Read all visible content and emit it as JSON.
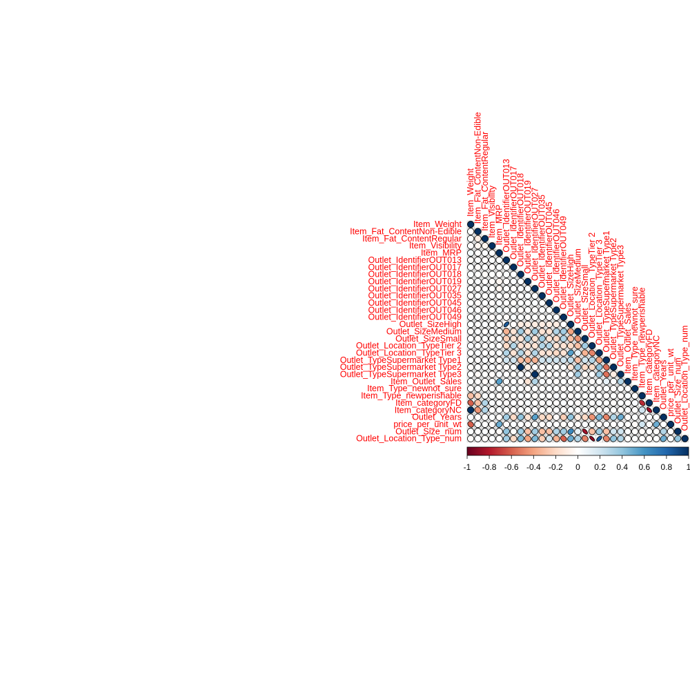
{
  "chart_data": {
    "type": "heatmap",
    "layout": "lower-triangle",
    "shape": "ellipse",
    "variables": [
      "Item_Weight",
      "Item_Fat_ContentNon-Edible",
      "Item_Fat_ContentRegular",
      "Item_Visibility",
      "Item_MRP",
      "Outlet_IdentifierOUT013",
      "Outlet_IdentifierOUT017",
      "Outlet_IdentifierOUT018",
      "Outlet_IdentifierOUT019",
      "Outlet_IdentifierOUT027",
      "Outlet_IdentifierOUT035",
      "Outlet_IdentifierOUT045",
      "Outlet_IdentifierOUT046",
      "Outlet_IdentifierOUT049",
      "Outlet_SizeHigh",
      "Outlet_SizeMedium",
      "Outlet_SizeSmall",
      "Outlet_Location_TypeTier 2",
      "Outlet_Location_TypeTier 3",
      "Outlet_TypeSupermarket Type1",
      "Outlet_TypeSupermarket Type2",
      "Outlet_TypeSupermarket Type3",
      "Item_Outlet_Sales",
      "Item_Type_newnot_sure",
      "Item_Type_newperishable",
      "Item_categoryFD",
      "Item_categoryNC",
      "Outlet_Years",
      "price_per_unit_wt",
      "Outlet_Size_num",
      "Outlet_Location_Type_num"
    ],
    "correlations": [
      [
        1,
        4,
        0.3
      ],
      [
        2,
        1,
        -0.1
      ],
      [
        3,
        1,
        -0.05
      ],
      [
        3,
        2,
        -0.05
      ],
      [
        4,
        0,
        0.05
      ],
      [
        8,
        4,
        -0.05
      ],
      [
        9,
        4,
        -0.05
      ],
      [
        12,
        4,
        0.05
      ],
      [
        14,
        5,
        0.85
      ],
      [
        14,
        7,
        -0.1
      ],
      [
        14,
        8,
        -0.1
      ],
      [
        14,
        9,
        -0.1
      ],
      [
        14,
        10,
        -0.1
      ],
      [
        14,
        11,
        -0.1
      ],
      [
        14,
        12,
        -0.1
      ],
      [
        15,
        5,
        -0.35
      ],
      [
        15,
        6,
        -0.15
      ],
      [
        15,
        7,
        0.35
      ],
      [
        15,
        8,
        -0.15
      ],
      [
        15,
        9,
        0.35
      ],
      [
        15,
        10,
        -0.15
      ],
      [
        15,
        11,
        -0.15
      ],
      [
        15,
        12,
        0.3
      ],
      [
        15,
        13,
        0.35
      ],
      [
        15,
        14,
        -0.4
      ],
      [
        16,
        5,
        -0.25
      ],
      [
        16,
        6,
        -0.15
      ],
      [
        16,
        7,
        -0.15
      ],
      [
        16,
        8,
        0.35
      ],
      [
        16,
        9,
        -0.15
      ],
      [
        16,
        10,
        0.35
      ],
      [
        16,
        11,
        -0.15
      ],
      [
        16,
        12,
        -0.2
      ],
      [
        16,
        13,
        0.3
      ],
      [
        16,
        14,
        -0.3
      ],
      [
        16,
        15,
        -0.45
      ],
      [
        17,
        5,
        -0.2
      ],
      [
        17,
        6,
        0.3
      ],
      [
        17,
        7,
        -0.15
      ],
      [
        17,
        8,
        -0.15
      ],
      [
        17,
        9,
        -0.15
      ],
      [
        17,
        10,
        0.3
      ],
      [
        17,
        11,
        0.3
      ],
      [
        17,
        12,
        -0.15
      ],
      [
        17,
        13,
        -0.15
      ],
      [
        17,
        14,
        -0.2
      ],
      [
        17,
        15,
        -0.3
      ],
      [
        17,
        16,
        0.35
      ],
      [
        18,
        5,
        0.3
      ],
      [
        18,
        6,
        -0.15
      ],
      [
        18,
        7,
        0.3
      ],
      [
        18,
        8,
        -0.15
      ],
      [
        18,
        9,
        0.3
      ],
      [
        18,
        10,
        -0.15
      ],
      [
        18,
        11,
        -0.15
      ],
      [
        18,
        12,
        -0.2
      ],
      [
        18,
        13,
        -0.15
      ],
      [
        18,
        14,
        0.55
      ],
      [
        18,
        15,
        0.1
      ],
      [
        18,
        16,
        -0.35
      ],
      [
        18,
        17,
        -0.5
      ],
      [
        19,
        5,
        0.2
      ],
      [
        19,
        6,
        0.2
      ],
      [
        19,
        7,
        -0.3
      ],
      [
        19,
        8,
        -0.35
      ],
      [
        19,
        9,
        -0.35
      ],
      [
        19,
        10,
        0.2
      ],
      [
        19,
        11,
        0.2
      ],
      [
        19,
        12,
        0.2
      ],
      [
        19,
        13,
        0.2
      ],
      [
        19,
        14,
        0.25
      ],
      [
        19,
        15,
        -0.3
      ],
      [
        19,
        16,
        0.2
      ],
      [
        19,
        17,
        0.3
      ],
      [
        19,
        18,
        -0.4
      ],
      [
        20,
        7,
        1.0
      ],
      [
        20,
        8,
        -0.1
      ],
      [
        20,
        14,
        -0.15
      ],
      [
        20,
        15,
        0.35
      ],
      [
        20,
        16,
        -0.2
      ],
      [
        20,
        17,
        -0.2
      ],
      [
        20,
        18,
        0.4
      ],
      [
        20,
        19,
        -0.55
      ],
      [
        21,
        9,
        1.0
      ],
      [
        21,
        15,
        0.35
      ],
      [
        21,
        18,
        0.35
      ],
      [
        21,
        19,
        -0.55
      ],
      [
        21,
        20,
        -0.1
      ],
      [
        22,
        4,
        0.55
      ],
      [
        22,
        8,
        -0.15
      ],
      [
        22,
        9,
        0.3
      ],
      [
        22,
        19,
        0.1
      ],
      [
        22,
        21,
        0.3
      ],
      [
        24,
        0,
        -0.3
      ],
      [
        24,
        1,
        -0.2
      ],
      [
        25,
        0,
        -0.6
      ],
      [
        25,
        1,
        -0.3
      ],
      [
        25,
        2,
        0.3
      ],
      [
        25,
        24,
        -0.75
      ],
      [
        26,
        0,
        1.0
      ],
      [
        26,
        1,
        -0.45
      ],
      [
        26,
        2,
        0.3
      ],
      [
        26,
        24,
        0.2
      ],
      [
        26,
        25,
        -0.85
      ],
      [
        27,
        5,
        0.35
      ],
      [
        27,
        6,
        -0.2
      ],
      [
        27,
        7,
        0.4
      ],
      [
        27,
        8,
        -0.15
      ],
      [
        27,
        9,
        0.55
      ],
      [
        27,
        10,
        -0.2
      ],
      [
        27,
        11,
        -0.2
      ],
      [
        27,
        13,
        -0.25
      ],
      [
        27,
        14,
        0.4
      ],
      [
        27,
        15,
        -0.1
      ],
      [
        27,
        16,
        -0.2
      ],
      [
        27,
        17,
        -0.45
      ],
      [
        27,
        18,
        0.45
      ],
      [
        27,
        19,
        -0.5
      ],
      [
        27,
        20,
        0.3
      ],
      [
        27,
        21,
        0.5
      ],
      [
        28,
        0,
        -0.6
      ],
      [
        28,
        4,
        0.5
      ],
      [
        28,
        24,
        0.2
      ],
      [
        28,
        26,
        0.5
      ],
      [
        29,
        5,
        0.4
      ],
      [
        29,
        7,
        0.35
      ],
      [
        29,
        8,
        -0.3
      ],
      [
        29,
        9,
        0.35
      ],
      [
        29,
        10,
        -0.3
      ],
      [
        29,
        11,
        -0.3
      ],
      [
        29,
        12,
        0.3
      ],
      [
        29,
        13,
        0.35
      ],
      [
        29,
        14,
        0.65
      ],
      [
        29,
        15,
        0.1
      ],
      [
        29,
        16,
        -0.85
      ],
      [
        29,
        17,
        -0.3
      ],
      [
        29,
        18,
        0.35
      ],
      [
        29,
        19,
        -0.3
      ],
      [
        29,
        20,
        0.2
      ],
      [
        29,
        21,
        0.2
      ],
      [
        29,
        27,
        0.3
      ],
      [
        30,
        5,
        0.35
      ],
      [
        30,
        6,
        -0.2
      ],
      [
        30,
        7,
        0.45
      ],
      [
        30,
        8,
        -0.4
      ],
      [
        30,
        9,
        0.45
      ],
      [
        30,
        10,
        -0.25
      ],
      [
        30,
        11,
        0.2
      ],
      [
        30,
        12,
        -0.35
      ],
      [
        30,
        13,
        -0.6
      ],
      [
        30,
        14,
        0.5
      ],
      [
        30,
        15,
        0.3
      ],
      [
        30,
        16,
        -0.5
      ],
      [
        30,
        17,
        -0.9
      ],
      [
        30,
        18,
        0.85
      ],
      [
        30,
        19,
        -0.5
      ],
      [
        30,
        20,
        0.4
      ],
      [
        30,
        21,
        0.3
      ],
      [
        30,
        27,
        0.5
      ],
      [
        30,
        29,
        0.4
      ]
    ],
    "colorbar": {
      "ticks": [
        "-1",
        "-0.8",
        "-0.6",
        "-0.4",
        "-0.2",
        "0",
        "0.2",
        "0.4",
        "0.6",
        "0.8",
        "1"
      ],
      "range": [
        -1,
        1
      ]
    },
    "colors": {
      "negative": "#67001F",
      "zero": "#FFFFFF",
      "positive": "#053061",
      "labels": "#FF0000",
      "grid": "#AAAAAA"
    }
  }
}
